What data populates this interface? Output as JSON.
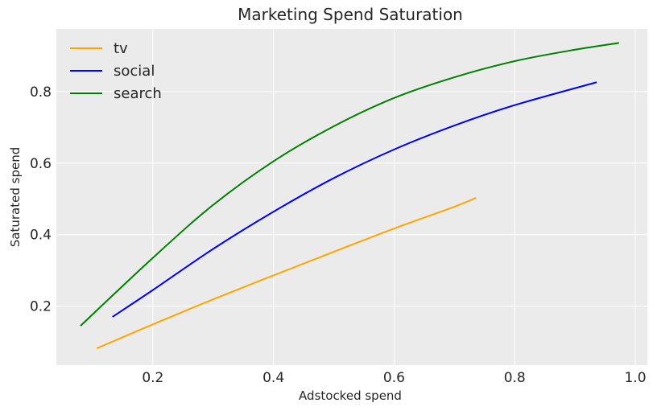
{
  "chart_data": {
    "type": "line",
    "title": "Marketing Spend Saturation",
    "xlabel": "Adstocked spend",
    "ylabel": "Saturated spend",
    "xlim": [
      0.04,
      1.02
    ],
    "ylim": [
      0.035,
      0.975
    ],
    "xticks": [
      0.2,
      0.4,
      0.6,
      0.8,
      1.0
    ],
    "xtick_labels": [
      "0.2",
      "0.4",
      "0.6",
      "0.8",
      "1.0"
    ],
    "yticks": [
      0.2,
      0.4,
      0.6,
      0.8
    ],
    "ytick_labels": [
      "0.2",
      "0.4",
      "0.6",
      "0.8"
    ],
    "grid": true,
    "legend_position": "top-left",
    "background": "#ebebeb",
    "series": [
      {
        "name": "tv",
        "color": "#ffa500",
        "x": [
          0.107,
          0.2,
          0.3,
          0.4,
          0.5,
          0.6,
          0.7,
          0.736
        ],
        "y": [
          0.082,
          0.149,
          0.219,
          0.286,
          0.352,
          0.417,
          0.478,
          0.503
        ]
      },
      {
        "name": "social",
        "color": "#0000ff",
        "x": [
          0.133,
          0.2,
          0.3,
          0.4,
          0.5,
          0.6,
          0.7,
          0.8,
          0.936
        ],
        "y": [
          0.17,
          0.245,
          0.36,
          0.464,
          0.558,
          0.638,
          0.705,
          0.762,
          0.826
        ]
      },
      {
        "name": "search",
        "color": "#008000",
        "x": [
          0.08,
          0.2,
          0.3,
          0.4,
          0.5,
          0.6,
          0.7,
          0.8,
          0.9,
          0.973
        ],
        "y": [
          0.145,
          0.335,
          0.483,
          0.605,
          0.703,
          0.782,
          0.84,
          0.885,
          0.917,
          0.936
        ]
      }
    ]
  }
}
